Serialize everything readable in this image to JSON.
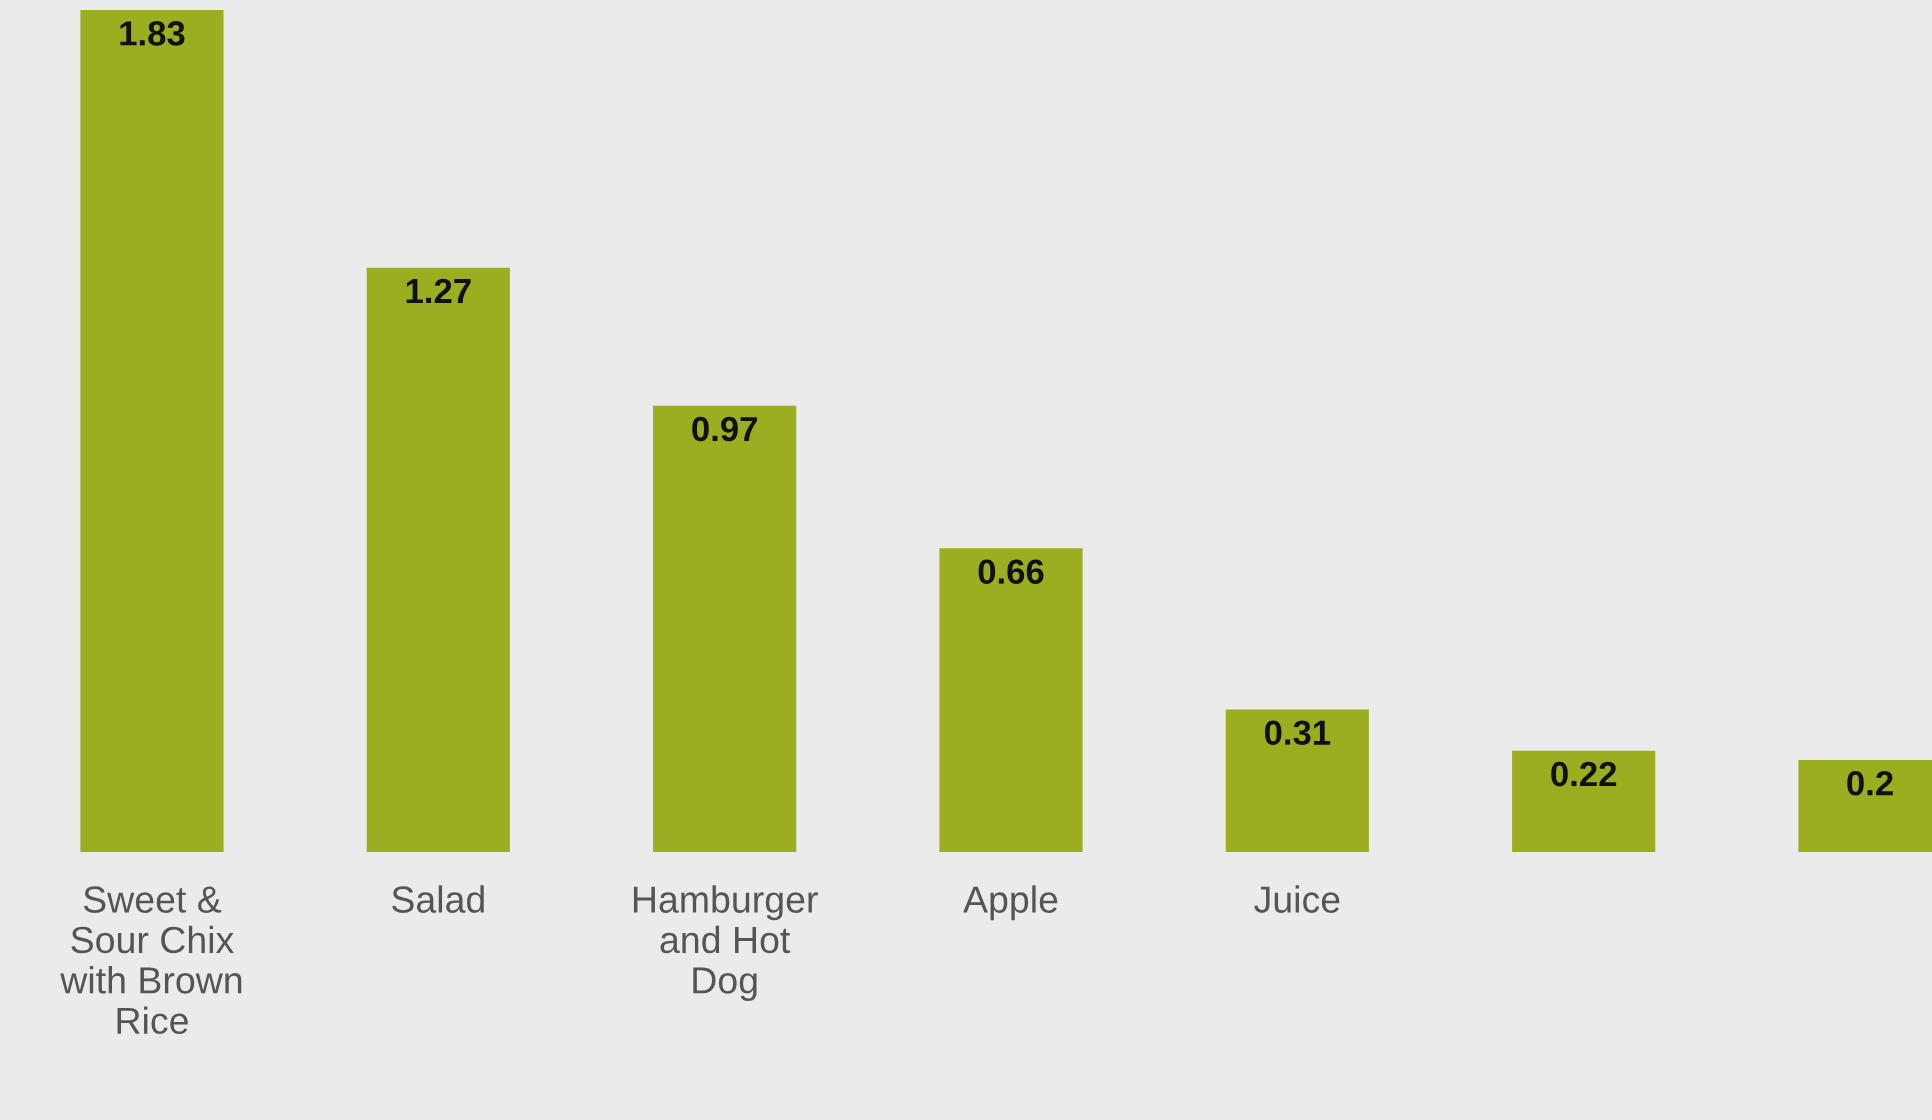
{
  "chart_data": {
    "type": "bar",
    "categories": [
      "Sweet &\nSour Chix\nwith Brown\nRice",
      "Salad",
      "Hamburger\nand Hot\nDog",
      "Apple",
      "Juice",
      null,
      null
    ],
    "values": [
      1.83,
      1.27,
      0.97,
      0.66,
      0.31,
      0.22,
      0.2
    ],
    "color": "#9aae1f",
    "data_labels": true,
    "grid": false,
    "legend": false
  }
}
